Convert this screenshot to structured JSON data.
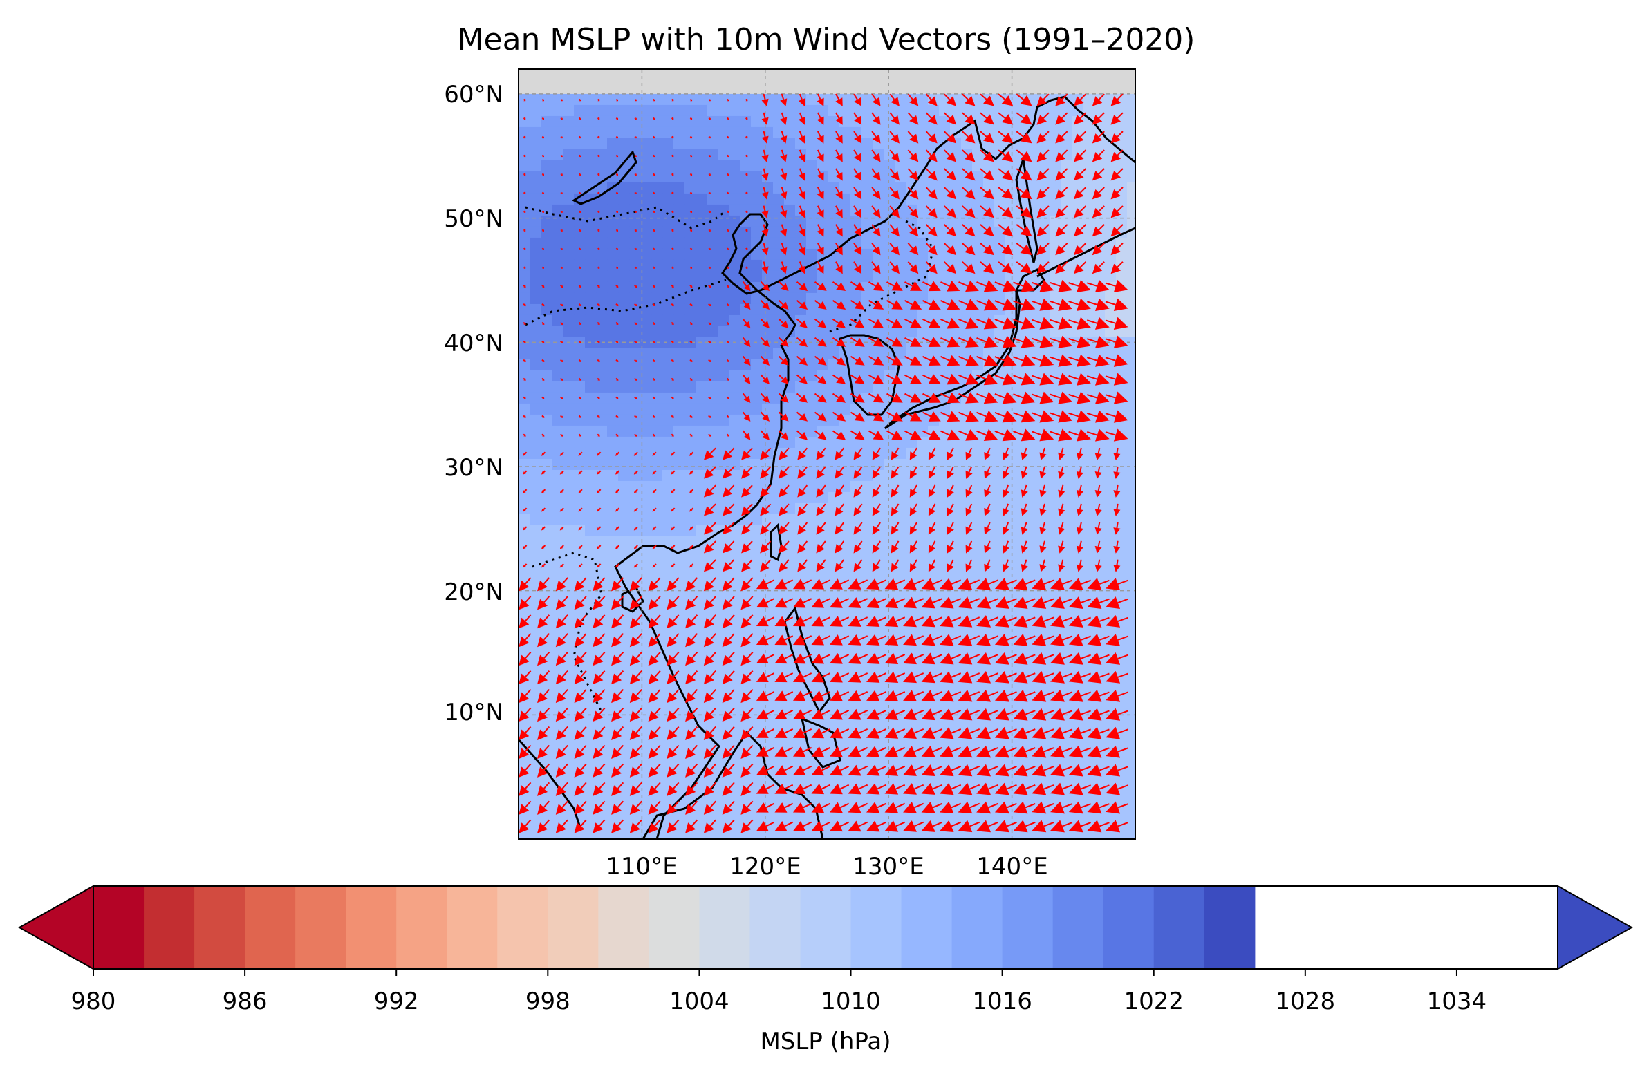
{
  "title": "Mean MSLP with 10m Wind Vectors (1991–2020)",
  "map": {
    "lat_ticks": [
      "60°N",
      "50°N",
      "40°N",
      "30°N",
      "20°N",
      "10°N"
    ],
    "lon_ticks": [
      "110°E",
      "120°E",
      "130°E",
      "140°E"
    ],
    "extent": {
      "lon_min": 100,
      "lon_max": 150,
      "lat_min": 0,
      "lat_max": 62
    },
    "data_lat_max": 60,
    "gridlines": true,
    "vector_color": "#ff0000",
    "land_colormap_note": "filled MSLP contours"
  },
  "colorbar": {
    "label": "MSLP (hPa)",
    "ticks": [
      "980",
      "986",
      "992",
      "998",
      "1004",
      "1010",
      "1016",
      "1022",
      "1028",
      "1034"
    ],
    "min": 980,
    "max": 1038,
    "step": 2,
    "colormap": "coolwarm_r",
    "colors": [
      "#b40426",
      "#c32e31",
      "#d24b40",
      "#e0654f",
      "#e97a5f",
      "#f29072",
      "#f5a385",
      "#f7b599",
      "#f5c4ad",
      "#f1cdba",
      "#e6d7cf",
      "#dcdddd",
      "#d0dae9",
      "#c4d5f3",
      "#b6cefa",
      "#a6c4fe",
      "#96b7ff",
      "#86a9fc",
      "#779af7",
      "#6788ee",
      "#5876e4",
      "#4a63d3",
      "#3b4cc0"
    ],
    "extend_low_color": "#b40426",
    "extend_high_color": "#3b4cc0"
  }
}
